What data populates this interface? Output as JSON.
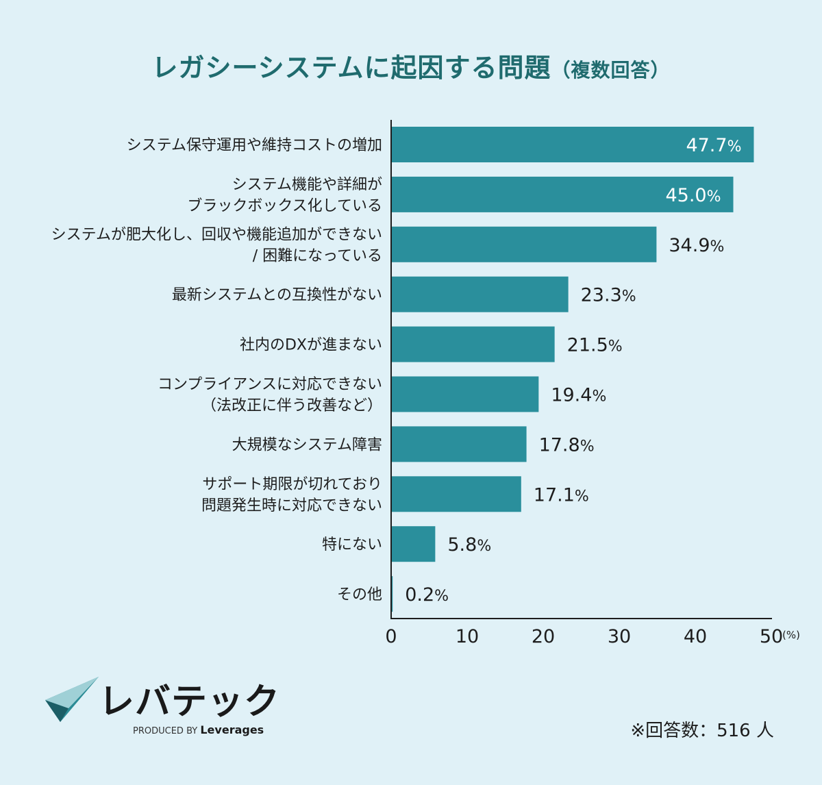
{
  "title": {
    "main": "レガシーシステムに起因する問題",
    "sub": "（複数回答）"
  },
  "chart_data": {
    "type": "bar",
    "orientation": "horizontal",
    "categories": [
      [
        "システム保守運用や維持コストの増加"
      ],
      [
        "システム機能や詳細が",
        "ブラックボックス化している"
      ],
      [
        "システムが肥大化し、回収や機能追加ができない",
        "/ 困難になっている"
      ],
      [
        "最新システムとの互換性がない"
      ],
      [
        "社内のDXが進まない"
      ],
      [
        "コンプライアンスに対応できない",
        "（法改正に伴う改善など）"
      ],
      [
        "大規模なシステム障害"
      ],
      [
        "サポート期限が切れており",
        "問題発生時に対応できない"
      ],
      [
        "特にない"
      ],
      [
        "その他"
      ]
    ],
    "values": [
      47.7,
      45.0,
      34.9,
      23.3,
      21.5,
      19.4,
      17.8,
      17.1,
      5.8,
      0.2
    ],
    "value_labels": [
      "47.7",
      "45.0",
      "34.9",
      "23.3",
      "21.5",
      "19.4",
      "17.8",
      "17.1",
      "5.8",
      "0.2"
    ],
    "value_suffix": "%",
    "xlim": [
      0,
      50
    ],
    "xticks": [
      0,
      10,
      20,
      30,
      40,
      50
    ],
    "xunit": "(%)",
    "bar_color": "#2a8f9c",
    "grid": false
  },
  "logo": {
    "name": "レバテック",
    "produced_by": "PRODUCED BY",
    "brand": "Leverages"
  },
  "footnote": "※回答数：516 人"
}
